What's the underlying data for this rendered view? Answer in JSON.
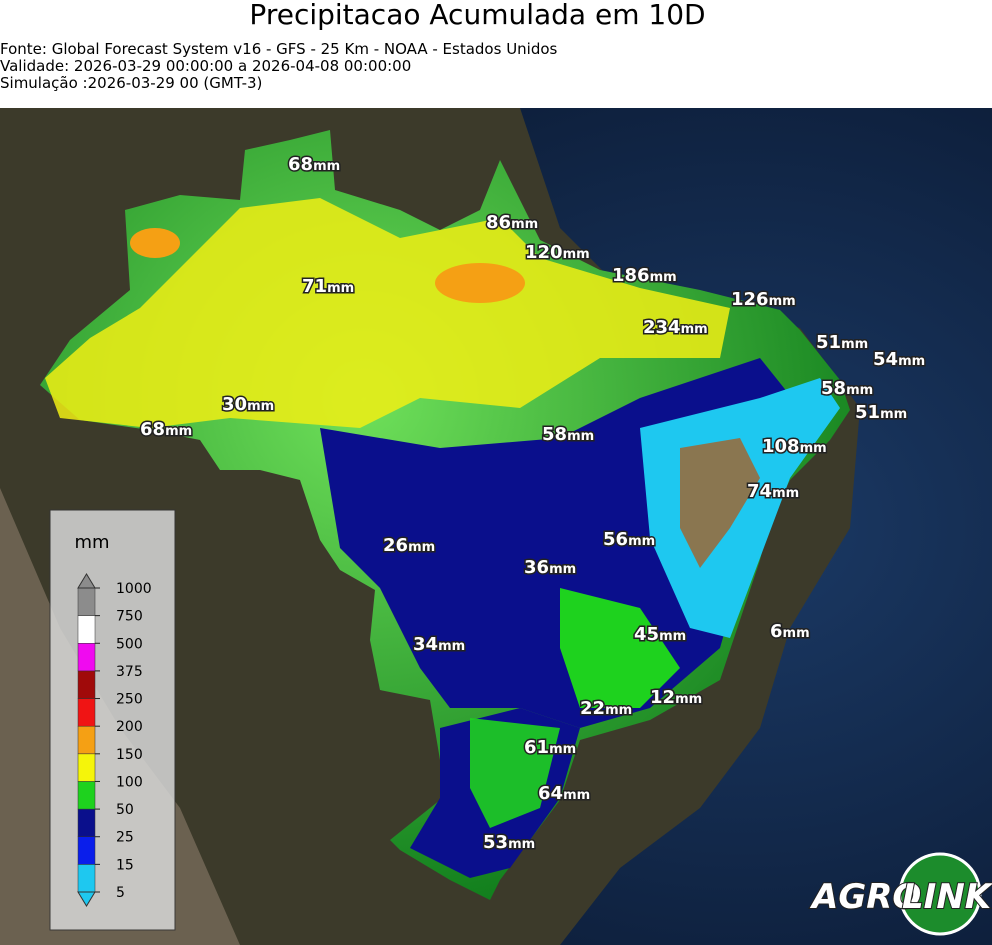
{
  "header": {
    "title": "Precipitacao Acumulada em 10D",
    "lines": [
      "Fonte: Global Forecast System v16 - GFS - 25 Km - NOAA - Estados Unidos",
      "Validade: 2026-03-29 00:00:00 a 2026-04-08 00:00:00",
      "Simulação :2026-03-29 00 (GMT-3)"
    ]
  },
  "map": {
    "labels": [
      {
        "value": 68,
        "unit": "mm"
      },
      {
        "value": 86,
        "unit": "mm"
      },
      {
        "value": 120,
        "unit": "mm"
      },
      {
        "value": 186,
        "unit": "mm"
      },
      {
        "value": 126,
        "unit": "mm"
      },
      {
        "value": 71,
        "unit": "mm"
      },
      {
        "value": 234,
        "unit": "mm"
      },
      {
        "value": 51,
        "unit": "mm"
      },
      {
        "value": 54,
        "unit": "mm"
      },
      {
        "value": 58,
        "unit": "mm"
      },
      {
        "value": 51,
        "unit": "mm"
      },
      {
        "value": 30,
        "unit": "mm"
      },
      {
        "value": 68,
        "unit": "mm"
      },
      {
        "value": 58,
        "unit": "mm"
      },
      {
        "value": 108,
        "unit": "mm"
      },
      {
        "value": 74,
        "unit": "mm"
      },
      {
        "value": 56,
        "unit": "mm"
      },
      {
        "value": 26,
        "unit": "mm"
      },
      {
        "value": 36,
        "unit": "mm"
      },
      {
        "value": 45,
        "unit": "mm"
      },
      {
        "value": 6,
        "unit": "mm"
      },
      {
        "value": 34,
        "unit": "mm"
      },
      {
        "value": 12,
        "unit": "mm"
      },
      {
        "value": 22,
        "unit": "mm"
      },
      {
        "value": 61,
        "unit": "mm"
      },
      {
        "value": 64,
        "unit": "mm"
      },
      {
        "value": 53,
        "unit": "mm"
      }
    ]
  },
  "legend": {
    "title": "mm",
    "ticks": [
      5,
      15,
      25,
      50,
      100,
      150,
      200,
      250,
      375,
      500,
      750,
      1000
    ],
    "colors": [
      "#1ec8f0",
      "#0a1eeb",
      "#0a0f8c",
      "#1ed21e",
      "#f5f50a",
      "#f5a014",
      "#f01414",
      "#a00a0a",
      "#f00af0",
      "#ffffff",
      "#8c8c8c"
    ]
  },
  "logo": {
    "left": "AGRO",
    "right": "LINK"
  }
}
